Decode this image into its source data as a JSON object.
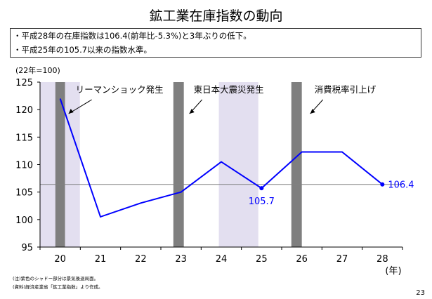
{
  "title": "鉱工業在庫指数の動向",
  "summary": [
    "・平成28年の在庫指数は106.4(前年比-5.3%)と3年ぶりの低下。",
    "・平成25年の105.7以来の指数水準。"
  ],
  "notes": [
    "(注)紫色のシャドー部分は景気後退局面。",
    "(資料)経済産業省「鉱工業指数」より作成。"
  ],
  "page_number": "23",
  "chart_data": {
    "type": "line",
    "unit_label": "(22年=100)",
    "xlabel": "(年)",
    "categories": [
      "20",
      "21",
      "22",
      "23",
      "24",
      "25",
      "26",
      "27",
      "28"
    ],
    "x": [
      20,
      21,
      22,
      23,
      24,
      25,
      26,
      27,
      28
    ],
    "values": [
      122,
      100.5,
      103,
      105,
      110.5,
      105.7,
      112.3,
      112.3,
      106.4
    ],
    "ylim": [
      95,
      125
    ],
    "yticks": [
      95,
      100,
      105,
      110,
      115,
      120,
      125
    ],
    "reference_line": 106.4,
    "data_labels": [
      {
        "x": 25,
        "value": 105.7,
        "text": "105.7"
      },
      {
        "x": 28,
        "value": 106.4,
        "text": "106.4"
      }
    ],
    "recession_shading": [
      [
        19.5,
        20.49
      ],
      [
        23.94,
        24.92
      ]
    ],
    "event_bars": [
      [
        19.88,
        20.12
      ],
      [
        22.81,
        23.07
      ],
      [
        25.74,
        26.0
      ]
    ],
    "annotations": [
      {
        "text": "リーマンショック発生",
        "x": 20
      },
      {
        "text": "東日本大震災発生",
        "x": 23
      },
      {
        "text": "消費税率引上げ",
        "x": 26
      }
    ],
    "colors": {
      "line": "#0000ff",
      "shade": "#e3dff0",
      "bar": "#7f7f7f",
      "ref": "#808080"
    }
  }
}
